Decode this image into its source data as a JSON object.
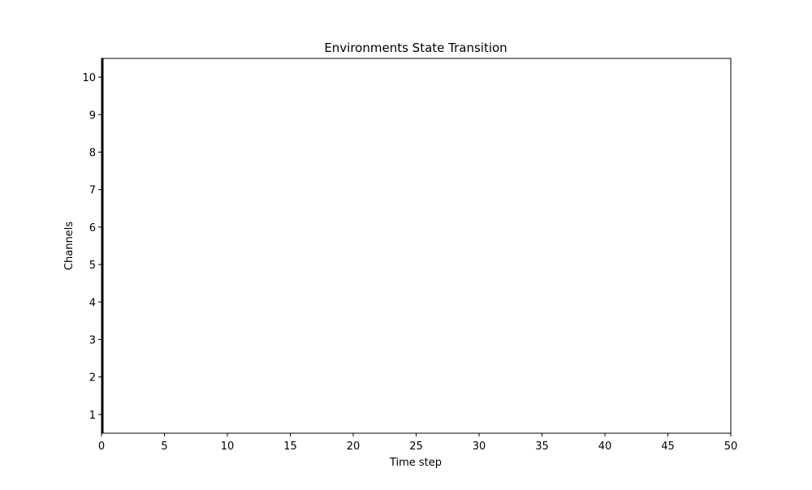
{
  "chart_data": {
    "type": "heatmap",
    "title": "Environments State Transition",
    "xlabel": "Time step",
    "ylabel": "Channels",
    "xlim": [
      0,
      50
    ],
    "ylim": [
      0.5,
      10.5
    ],
    "xticks": [
      0,
      5,
      10,
      15,
      20,
      25,
      30,
      35,
      40,
      45,
      50
    ],
    "yticks": [
      1,
      2,
      3,
      4,
      5,
      6,
      7,
      8,
      9,
      10
    ],
    "grid": false,
    "legend": "none",
    "bar_color": "#000000",
    "segments": [
      {
        "channel_from": 0.5,
        "channel_to": 10.5,
        "t_start": 0,
        "t_end": 0.1
      }
    ]
  }
}
